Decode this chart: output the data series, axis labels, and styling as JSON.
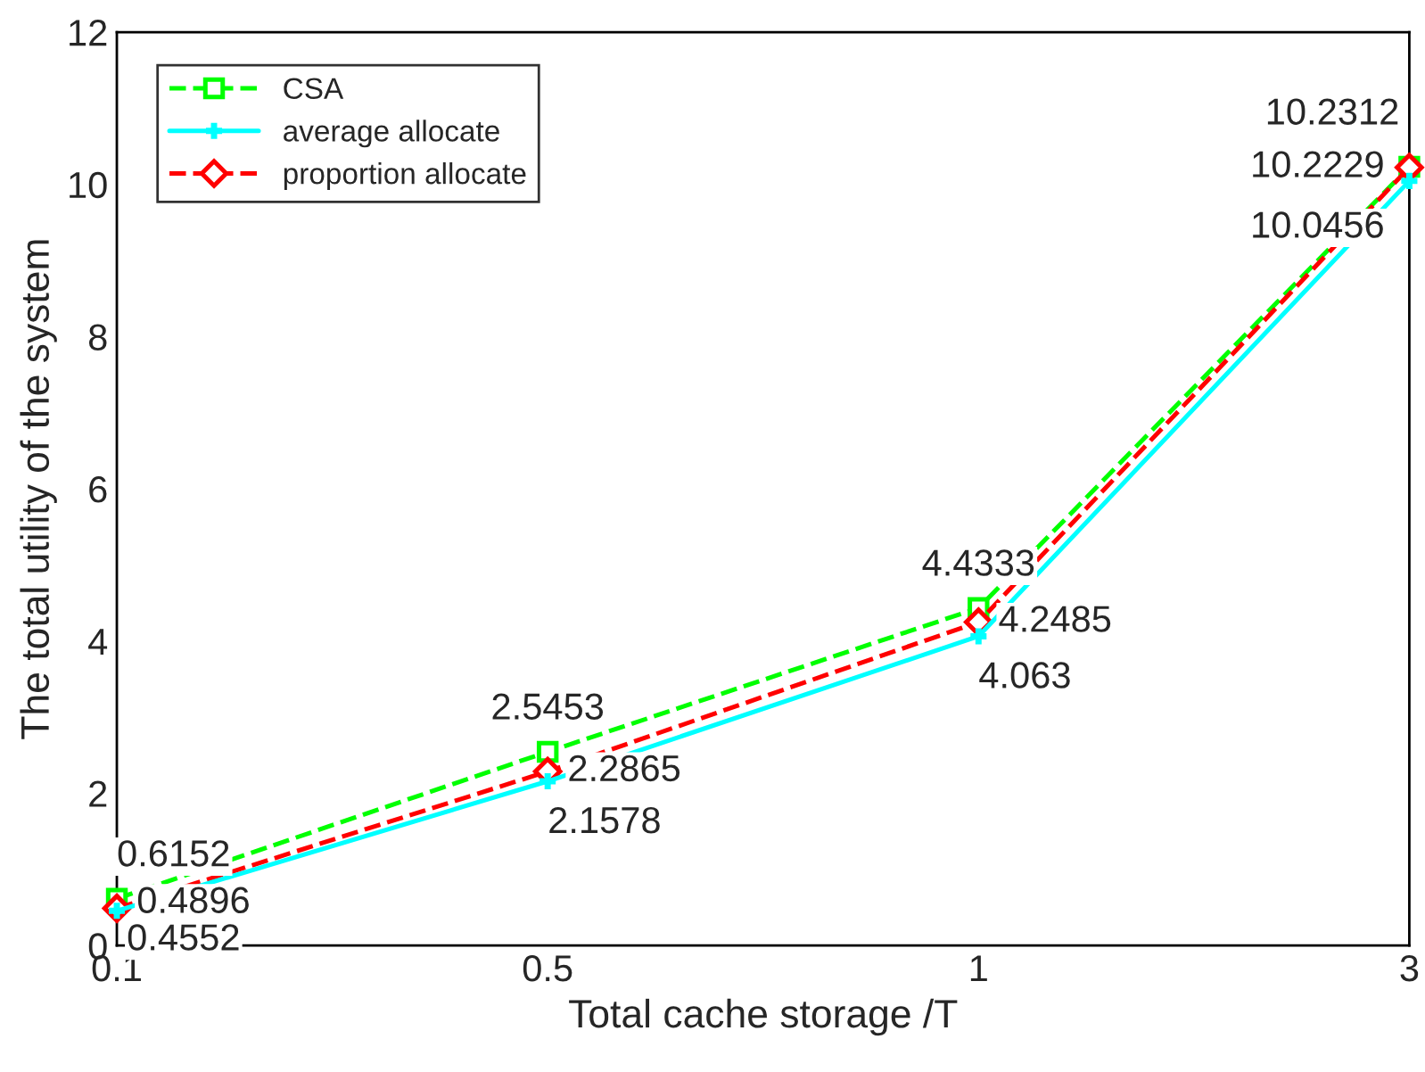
{
  "chart_data": {
    "type": "line",
    "xlabel": "Total cache storage /T",
    "ylabel": "The total utility of the system",
    "categories": [
      "0.1",
      "0.5",
      "1",
      "3"
    ],
    "series": [
      {
        "name": "CSA",
        "color": "#00ff00",
        "values": [
          0.6152,
          2.5453,
          4.4333,
          10.2312
        ],
        "marker": "square",
        "line_style": "dashed"
      },
      {
        "name": "average allocate",
        "color": "#00ffff",
        "values": [
          0.4552,
          2.1578,
          4.063,
          10.0456
        ],
        "marker": "cross",
        "line_style": "solid"
      },
      {
        "name": "proportion allocate",
        "color": "#ff0000",
        "values": [
          0.4896,
          2.2865,
          4.2485,
          10.2229
        ],
        "marker": "diamond",
        "line_style": "dashed"
      }
    ],
    "ylim": [
      0,
      12
    ],
    "yticks": [
      0,
      2,
      4,
      6,
      8,
      10,
      12
    ],
    "grid": false,
    "legend": "top left",
    "data_labels": true
  }
}
